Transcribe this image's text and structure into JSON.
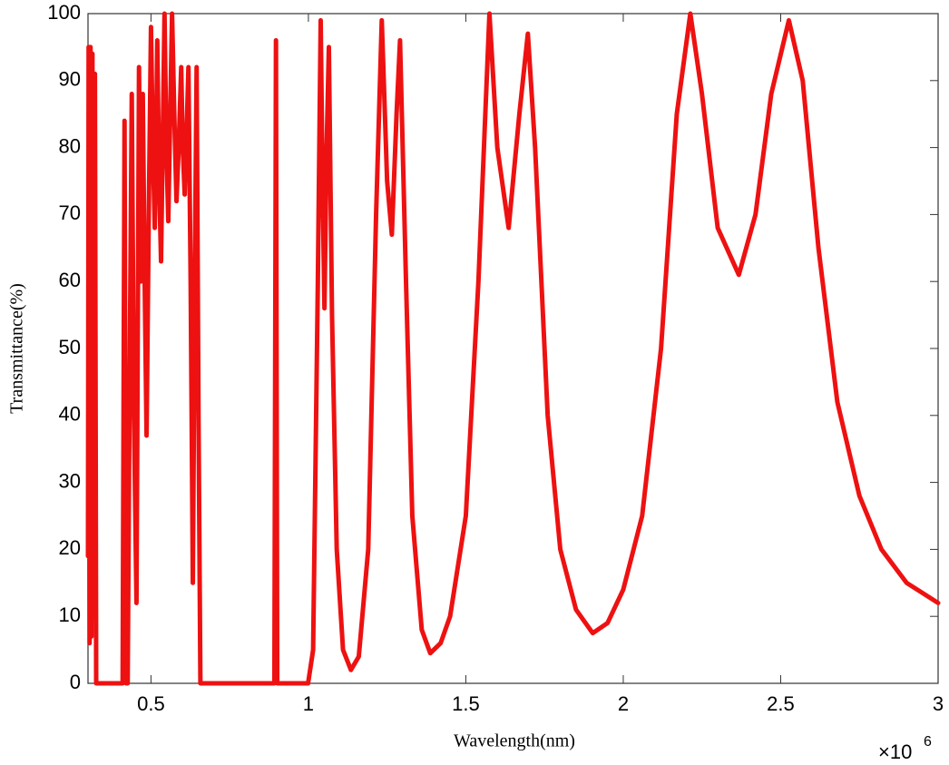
{
  "chart_data": {
    "type": "line",
    "x_label": "Wavelength(nm)",
    "y_label": "Transmittance(%)",
    "x_multiplier": "×10",
    "x_multiplier_exponent": "6",
    "color": "#ee1111",
    "x": [
      0.3,
      0.302,
      0.305,
      0.308,
      0.311,
      0.314,
      0.318,
      0.322,
      0.326,
      0.33,
      0.405,
      0.41,
      0.416,
      0.421,
      0.426,
      0.433,
      0.439,
      0.446,
      0.454,
      0.462,
      0.468,
      0.474,
      0.48,
      0.486,
      0.493,
      0.5,
      0.506,
      0.512,
      0.516,
      0.52,
      0.526,
      0.532,
      0.537,
      0.543,
      0.549,
      0.555,
      0.561,
      0.567,
      0.574,
      0.581,
      0.588,
      0.596,
      0.601,
      0.607,
      0.613,
      0.619,
      0.626,
      0.633,
      0.639,
      0.645,
      0.651,
      0.657,
      0.888,
      0.892,
      0.897,
      0.901,
      0.905,
      0.999,
      1.015,
      1.03,
      1.039,
      1.045,
      1.051,
      1.058,
      1.065,
      1.075,
      1.09,
      1.11,
      1.135,
      1.16,
      1.19,
      1.215,
      1.233,
      1.25,
      1.265,
      1.28,
      1.291,
      1.31,
      1.33,
      1.36,
      1.387,
      1.42,
      1.45,
      1.5,
      1.54,
      1.575,
      1.6,
      1.636,
      1.67,
      1.697,
      1.72,
      1.76,
      1.8,
      1.85,
      1.903,
      1.95,
      2.0,
      2.06,
      2.12,
      2.17,
      2.213,
      2.25,
      2.3,
      2.367,
      2.42,
      2.47,
      2.526,
      2.57,
      2.62,
      2.68,
      2.75,
      2.82,
      2.9,
      3.0
    ],
    "values": [
      19,
      95,
      6,
      95,
      7,
      94,
      20,
      91,
      0,
      0,
      0,
      0,
      84,
      0,
      0,
      50,
      88,
      40,
      12,
      92,
      60,
      88,
      60,
      37,
      70,
      98,
      80,
      68,
      80,
      96,
      75,
      63,
      80,
      100,
      80,
      69,
      85,
      100,
      85,
      72,
      80,
      92,
      80,
      73,
      82,
      92,
      60,
      15,
      60,
      92,
      40,
      0,
      0,
      0,
      96,
      0,
      0,
      0,
      5,
      60,
      99,
      75,
      56,
      80,
      95,
      55,
      20,
      5,
      2,
      4,
      20,
      70,
      99,
      75,
      67,
      85,
      96,
      60,
      25,
      8,
      4.5,
      6,
      10,
      25,
      60,
      100,
      80,
      68,
      85,
      97,
      80,
      40,
      20,
      11,
      7.5,
      9,
      14,
      25,
      50,
      85,
      100,
      88,
      68,
      61,
      70,
      88,
      99,
      90,
      65,
      42,
      28,
      20,
      15,
      12
    ],
    "xlim": [
      0.3,
      3
    ],
    "xticks": [
      0.5,
      1,
      1.5,
      2,
      2.5,
      3
    ],
    "ylim": [
      0,
      100
    ],
    "yticks": [
      0,
      10,
      20,
      30,
      40,
      50,
      60,
      70,
      80,
      90,
      100
    ]
  }
}
